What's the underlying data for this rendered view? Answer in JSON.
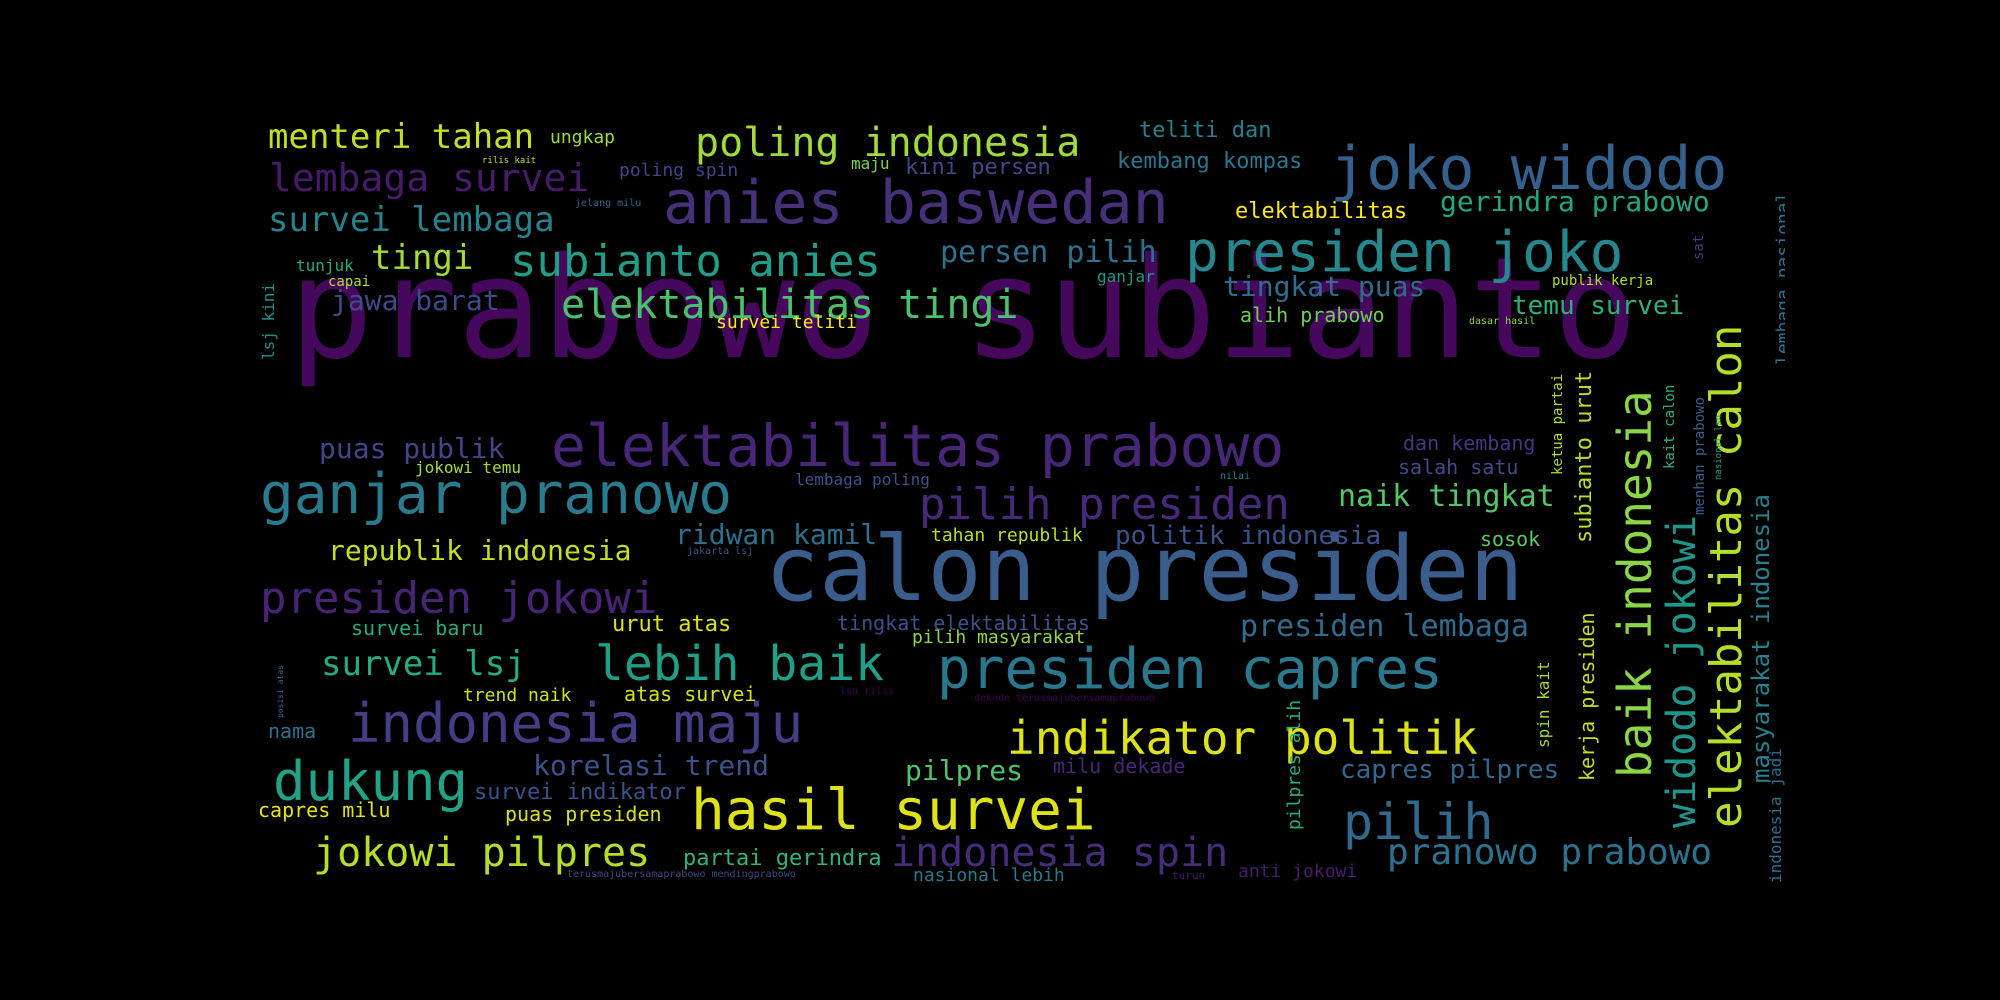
{
  "wordcloud": {
    "words": [
      {
        "text": "prabowo subianto",
        "color": "#46085c"
      },
      {
        "text": "calon presiden",
        "color": "#3b5d8b"
      },
      {
        "text": "anies baswedan",
        "color": "#47307a"
      },
      {
        "text": "joko widodo",
        "color": "#34608d"
      },
      {
        "text": "elektabilitas prabowo",
        "color": "#482677"
      },
      {
        "text": "presiden joko",
        "color": "#24888e"
      },
      {
        "text": "ganjar pranowo",
        "color": "#297b8e"
      },
      {
        "text": "hasil survei",
        "color": "#dde318"
      },
      {
        "text": "presiden capres",
        "color": "#2a788e"
      },
      {
        "text": "indonesia maju",
        "color": "#433e85"
      },
      {
        "text": "subianto anies",
        "color": "#1f9e89"
      },
      {
        "text": "elektabilitas tingi",
        "color": "#4ac16d"
      },
      {
        "text": "poling indonesia",
        "color": "#9fda3a"
      },
      {
        "text": "presiden jokowi",
        "color": "#482475"
      },
      {
        "text": "lebih baik",
        "color": "#1f9f88"
      },
      {
        "text": "indikator politik",
        "color": "#dde318"
      },
      {
        "text": "dukung",
        "color": "#20a386"
      },
      {
        "text": "pilih presiden",
        "color": "#482979"
      },
      {
        "text": "pilih",
        "color": "#31688e"
      },
      {
        "text": "jokowi pilpres",
        "color": "#b5de2b"
      },
      {
        "text": "indonesia spin",
        "color": "#472c7a"
      },
      {
        "text": "lembaga survei",
        "color": "#481a6c"
      },
      {
        "text": "menteri tahan",
        "color": "#c0df25"
      },
      {
        "text": "survei lembaga",
        "color": "#26828e"
      },
      {
        "text": "pranowo prabowo",
        "color": "#2c728e"
      },
      {
        "text": "survei lsj",
        "color": "#25ac82"
      },
      {
        "text": "tingi",
        "color": "#a5db36"
      },
      {
        "text": "jawa barat",
        "color": "#3e4a89"
      },
      {
        "text": "gerindra prabowo",
        "color": "#22a785"
      },
      {
        "text": "persen pilih",
        "color": "#2c718e"
      },
      {
        "text": "tingkat puas",
        "color": "#2e6d8e"
      },
      {
        "text": "temu survei",
        "color": "#2ab07f"
      },
      {
        "text": "naik tingkat",
        "color": "#54c568"
      },
      {
        "text": "presiden lembaga",
        "color": "#2f6c8e"
      },
      {
        "text": "ridwan kamil",
        "color": "#2d708e"
      },
      {
        "text": "politik indonesia",
        "color": "#3b528b"
      },
      {
        "text": "republik indonesia",
        "color": "#c2df23"
      },
      {
        "text": "puas publik",
        "color": "#3f4788"
      },
      {
        "text": "korelasi trend",
        "color": "#3b528b"
      },
      {
        "text": "pilpres",
        "color": "#4ec36b"
      },
      {
        "text": "capres pilpres",
        "color": "#31688e"
      },
      {
        "text": "survei indikator",
        "color": "#3b528b"
      },
      {
        "text": "partai gerindra",
        "color": "#2fb47c"
      },
      {
        "text": "kembang kompas",
        "color": "#2a768e"
      },
      {
        "text": "teliti dan",
        "color": "#27808e"
      },
      {
        "text": "kini persen",
        "color": "#3f4889"
      },
      {
        "text": "elektabilitas",
        "color": "#fde725"
      },
      {
        "text": "alih prabowo",
        "color": "#6ece58"
      },
      {
        "text": "dan kembang",
        "color": "#453581"
      },
      {
        "text": "salah satu",
        "color": "#3e4c8a"
      },
      {
        "text": "sosok",
        "color": "#5ec962"
      },
      {
        "text": "urut atas",
        "color": "#dde318"
      },
      {
        "text": "survei baru",
        "color": "#25ab82"
      },
      {
        "text": "atas survei",
        "color": "#d5e21a"
      },
      {
        "text": "trend naik",
        "color": "#d0e11c"
      },
      {
        "text": "tingkat elektabilitas",
        "color": "#3b528b"
      },
      {
        "text": "pilih masyarakat",
        "color": "#90d743"
      },
      {
        "text": "tahan republik",
        "color": "#b8de29"
      },
      {
        "text": "nama",
        "color": "#2c728e"
      },
      {
        "text": "capres milu",
        "color": "#e5e419"
      },
      {
        "text": "puas presiden",
        "color": "#d8e219"
      },
      {
        "text": "milu dekade",
        "color": "#482677"
      },
      {
        "text": "nasional lebih",
        "color": "#2a788e"
      },
      {
        "text": "anti jokowi",
        "color": "#481b6d"
      },
      {
        "text": "ungkap",
        "color": "#a0da39"
      },
      {
        "text": "poling spin",
        "color": "#414487"
      },
      {
        "text": "maju",
        "color": "#7fd34e"
      },
      {
        "text": "tunjuk",
        "color": "#25ab82"
      },
      {
        "text": "capai",
        "color": "#addc30"
      },
      {
        "text": "ganjar",
        "color": "#1f9a8a"
      },
      {
        "text": "survei teliti",
        "color": "#fde725"
      },
      {
        "text": "publik kerja",
        "color": "#b2dd2d"
      },
      {
        "text": "jokowi temu",
        "color": "#a8db34"
      },
      {
        "text": "lembaga poling",
        "color": "#3b528b"
      },
      {
        "text": "sat",
        "color": "#443a83"
      },
      {
        "text": "turun",
        "color": "#481769"
      },
      {
        "text": "rilis kait",
        "color": "#bddf26"
      },
      {
        "text": "jelang milu",
        "color": "#31688e"
      },
      {
        "text": "nilai",
        "color": "#26828e"
      },
      {
        "text": "jakarta lsj",
        "color": "#3a538b"
      },
      {
        "text": "lsn rilis",
        "color": "#440154"
      },
      {
        "text": "dasar hasil",
        "color": "#9bd93c"
      },
      {
        "text": "dekade terusmajubersamaprabowo",
        "color": "#440154"
      },
      {
        "text": "terusmajubersamaprabowo mendingprabowo",
        "color": "#3f4788"
      },
      {
        "text": "elektabilitas calon",
        "color": "#b5de2b"
      },
      {
        "text": "baik indonesia",
        "color": "#8bd646"
      },
      {
        "text": "widodo jokowi",
        "color": "#1f968b"
      },
      {
        "text": "masyarakat indonesia",
        "color": "#26828e"
      },
      {
        "text": "subianto urut",
        "color": "#b8de29"
      },
      {
        "text": "kerja presiden",
        "color": "#c0df25"
      },
      {
        "text": "spin kait",
        "color": "#a2da37"
      },
      {
        "text": "pilpres alih",
        "color": "#26ad81"
      },
      {
        "text": "ketua partai",
        "color": "#addc30"
      },
      {
        "text": "kait calon",
        "color": "#2fb47c"
      },
      {
        "text": "menhan prabowo",
        "color": "#34618d"
      },
      {
        "text": "nasional lsn",
        "color": "#1fa187"
      },
      {
        "text": "lembaga nasional",
        "color": "#2c728e"
      },
      {
        "text": "indonesia jadi",
        "color": "#2e6e8e"
      },
      {
        "text": "lsj kini",
        "color": "#21918c"
      },
      {
        "text": "posisi atas",
        "color": "#2f6b8e"
      }
    ]
  }
}
